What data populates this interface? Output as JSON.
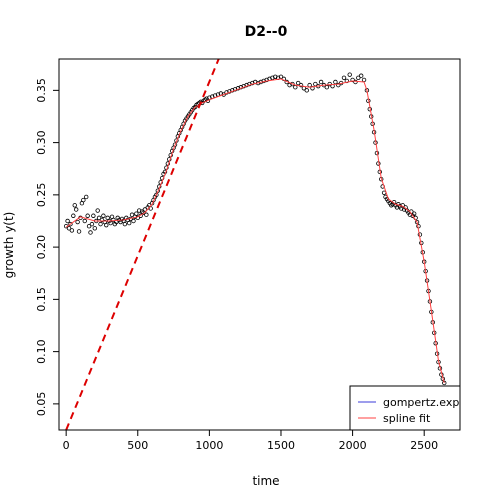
{
  "chart_data": {
    "type": "scatter",
    "title": "D2--0",
    "xlabel": "time",
    "ylabel": "growth y(t)",
    "xlim": [
      -50,
      2750
    ],
    "ylim": [
      0.025,
      0.38
    ],
    "x_ticks": [
      0,
      500,
      1000,
      1500,
      2000,
      2500
    ],
    "y_ticks": [
      0.05,
      0.1,
      0.15,
      0.2,
      0.25,
      0.3,
      0.35
    ],
    "grid": false,
    "legend_position": "bottom-right",
    "legend": [
      {
        "label": "gompertz.exp",
        "color": "#3b3bd9"
      },
      {
        "label": "spline fit",
        "color": "#ff4040"
      }
    ],
    "series": [
      {
        "name": "data",
        "kind": "points",
        "color": "#000000",
        "points": [
          [
            0,
            0.22
          ],
          [
            10,
            0.225
          ],
          [
            20,
            0.218
          ],
          [
            30,
            0.222
          ],
          [
            40,
            0.216
          ],
          [
            50,
            0.23
          ],
          [
            60,
            0.24
          ],
          [
            70,
            0.236
          ],
          [
            80,
            0.224
          ],
          [
            90,
            0.215
          ],
          [
            100,
            0.228
          ],
          [
            110,
            0.242
          ],
          [
            120,
            0.245
          ],
          [
            130,
            0.225
          ],
          [
            140,
            0.248
          ],
          [
            150,
            0.23
          ],
          [
            160,
            0.22
          ],
          [
            170,
            0.214
          ],
          [
            180,
            0.222
          ],
          [
            190,
            0.23
          ],
          [
            200,
            0.218
          ],
          [
            210,
            0.225
          ],
          [
            220,
            0.235
          ],
          [
            230,
            0.228
          ],
          [
            240,
            0.222
          ],
          [
            250,
            0.226
          ],
          [
            260,
            0.23
          ],
          [
            270,
            0.224
          ],
          [
            280,
            0.221
          ],
          [
            290,
            0.228
          ],
          [
            300,
            0.225
          ],
          [
            310,
            0.223
          ],
          [
            320,
            0.229
          ],
          [
            330,
            0.226
          ],
          [
            340,
            0.222
          ],
          [
            350,
            0.224
          ],
          [
            360,
            0.228
          ],
          [
            370,
            0.226
          ],
          [
            380,
            0.224
          ],
          [
            390,
            0.227
          ],
          [
            400,
            0.225
          ],
          [
            410,
            0.222
          ],
          [
            420,
            0.228
          ],
          [
            430,
            0.226
          ],
          [
            440,
            0.223
          ],
          [
            450,
            0.227
          ],
          [
            460,
            0.231
          ],
          [
            470,
            0.225
          ],
          [
            480,
            0.229
          ],
          [
            490,
            0.232
          ],
          [
            500,
            0.228
          ],
          [
            510,
            0.235
          ],
          [
            520,
            0.23
          ],
          [
            530,
            0.234
          ],
          [
            540,
            0.233
          ],
          [
            550,
            0.236
          ],
          [
            560,
            0.231
          ],
          [
            570,
            0.238
          ],
          [
            580,
            0.24
          ],
          [
            590,
            0.237
          ],
          [
            600,
            0.242
          ],
          [
            610,
            0.245
          ],
          [
            620,
            0.248
          ],
          [
            630,
            0.25
          ],
          [
            640,
            0.254
          ],
          [
            650,
            0.258
          ],
          [
            660,
            0.262
          ],
          [
            670,
            0.266
          ],
          [
            680,
            0.27
          ],
          [
            690,
            0.272
          ],
          [
            700,
            0.276
          ],
          [
            710,
            0.28
          ],
          [
            720,
            0.284
          ],
          [
            730,
            0.288
          ],
          [
            740,
            0.292
          ],
          [
            750,
            0.295
          ],
          [
            760,
            0.298
          ],
          [
            770,
            0.302
          ],
          [
            780,
            0.306
          ],
          [
            790,
            0.309
          ],
          [
            800,
            0.312
          ],
          [
            810,
            0.315
          ],
          [
            820,
            0.318
          ],
          [
            830,
            0.321
          ],
          [
            840,
            0.323
          ],
          [
            850,
            0.325
          ],
          [
            860,
            0.327
          ],
          [
            870,
            0.329
          ],
          [
            880,
            0.331
          ],
          [
            890,
            0.333
          ],
          [
            900,
            0.334
          ],
          [
            910,
            0.336
          ],
          [
            920,
            0.337
          ],
          [
            930,
            0.338
          ],
          [
            940,
            0.339
          ],
          [
            950,
            0.338
          ],
          [
            960,
            0.34
          ],
          [
            970,
            0.341
          ],
          [
            980,
            0.342
          ],
          [
            990,
            0.34
          ],
          [
            1000,
            0.343
          ],
          [
            1020,
            0.344
          ],
          [
            1040,
            0.345
          ],
          [
            1060,
            0.346
          ],
          [
            1080,
            0.347
          ],
          [
            1100,
            0.346
          ],
          [
            1120,
            0.348
          ],
          [
            1140,
            0.349
          ],
          [
            1160,
            0.35
          ],
          [
            1180,
            0.351
          ],
          [
            1200,
            0.352
          ],
          [
            1220,
            0.353
          ],
          [
            1240,
            0.354
          ],
          [
            1260,
            0.355
          ],
          [
            1280,
            0.356
          ],
          [
            1300,
            0.357
          ],
          [
            1320,
            0.358
          ],
          [
            1340,
            0.357
          ],
          [
            1360,
            0.358
          ],
          [
            1380,
            0.359
          ],
          [
            1400,
            0.36
          ],
          [
            1420,
            0.361
          ],
          [
            1440,
            0.362
          ],
          [
            1460,
            0.363
          ],
          [
            1480,
            0.362
          ],
          [
            1500,
            0.363
          ],
          [
            1520,
            0.361
          ],
          [
            1540,
            0.358
          ],
          [
            1560,
            0.355
          ],
          [
            1580,
            0.356
          ],
          [
            1600,
            0.353
          ],
          [
            1620,
            0.357
          ],
          [
            1640,
            0.355
          ],
          [
            1660,
            0.352
          ],
          [
            1680,
            0.35
          ],
          [
            1700,
            0.355
          ],
          [
            1720,
            0.352
          ],
          [
            1740,
            0.356
          ],
          [
            1760,
            0.354
          ],
          [
            1780,
            0.358
          ],
          [
            1800,
            0.355
          ],
          [
            1820,
            0.353
          ],
          [
            1840,
            0.356
          ],
          [
            1860,
            0.354
          ],
          [
            1880,
            0.358
          ],
          [
            1900,
            0.355
          ],
          [
            1920,
            0.357
          ],
          [
            1940,
            0.362
          ],
          [
            1960,
            0.359
          ],
          [
            1980,
            0.365
          ],
          [
            2000,
            0.36
          ],
          [
            2020,
            0.358
          ],
          [
            2040,
            0.362
          ],
          [
            2060,
            0.364
          ],
          [
            2080,
            0.36
          ],
          [
            2100,
            0.35
          ],
          [
            2110,
            0.34
          ],
          [
            2120,
            0.332
          ],
          [
            2130,
            0.325
          ],
          [
            2140,
            0.318
          ],
          [
            2150,
            0.31
          ],
          [
            2160,
            0.3
          ],
          [
            2170,
            0.29
          ],
          [
            2180,
            0.28
          ],
          [
            2190,
            0.272
          ],
          [
            2200,
            0.265
          ],
          [
            2210,
            0.258
          ],
          [
            2220,
            0.252
          ],
          [
            2230,
            0.248
          ],
          [
            2240,
            0.246
          ],
          [
            2250,
            0.244
          ],
          [
            2260,
            0.242
          ],
          [
            2270,
            0.24
          ],
          [
            2280,
            0.241
          ],
          [
            2290,
            0.243
          ],
          [
            2300,
            0.24
          ],
          [
            2310,
            0.238
          ],
          [
            2320,
            0.241
          ],
          [
            2330,
            0.239
          ],
          [
            2340,
            0.237
          ],
          [
            2350,
            0.24
          ],
          [
            2360,
            0.236
          ],
          [
            2370,
            0.238
          ],
          [
            2380,
            0.235
          ],
          [
            2390,
            0.233
          ],
          [
            2400,
            0.231
          ],
          [
            2410,
            0.234
          ],
          [
            2420,
            0.23
          ],
          [
            2430,
            0.232
          ],
          [
            2440,
            0.228
          ],
          [
            2450,
            0.224
          ],
          [
            2460,
            0.22
          ],
          [
            2470,
            0.212
          ],
          [
            2480,
            0.204
          ],
          [
            2490,
            0.195
          ],
          [
            2500,
            0.186
          ],
          [
            2510,
            0.177
          ],
          [
            2520,
            0.168
          ],
          [
            2530,
            0.158
          ],
          [
            2540,
            0.148
          ],
          [
            2550,
            0.138
          ],
          [
            2560,
            0.128
          ],
          [
            2570,
            0.118
          ],
          [
            2580,
            0.108
          ],
          [
            2590,
            0.098
          ],
          [
            2600,
            0.09
          ],
          [
            2610,
            0.084
          ],
          [
            2620,
            0.078
          ],
          [
            2630,
            0.074
          ],
          [
            2640,
            0.07
          ]
        ]
      },
      {
        "name": "spline fit",
        "kind": "line",
        "color": "#ff4040",
        "points": [
          [
            0,
            0.219
          ],
          [
            100,
            0.229
          ],
          [
            200,
            0.225
          ],
          [
            300,
            0.225
          ],
          [
            400,
            0.226
          ],
          [
            500,
            0.229
          ],
          [
            550,
            0.233
          ],
          [
            600,
            0.241
          ],
          [
            650,
            0.256
          ],
          [
            700,
            0.273
          ],
          [
            750,
            0.294
          ],
          [
            800,
            0.311
          ],
          [
            850,
            0.325
          ],
          [
            900,
            0.334
          ],
          [
            950,
            0.338
          ],
          [
            1000,
            0.341
          ],
          [
            1100,
            0.346
          ],
          [
            1200,
            0.351
          ],
          [
            1300,
            0.356
          ],
          [
            1400,
            0.359
          ],
          [
            1500,
            0.361
          ],
          [
            1600,
            0.355
          ],
          [
            1700,
            0.353
          ],
          [
            1800,
            0.355
          ],
          [
            1900,
            0.356
          ],
          [
            2000,
            0.359
          ],
          [
            2080,
            0.358
          ],
          [
            2100,
            0.35
          ],
          [
            2150,
            0.312
          ],
          [
            2200,
            0.266
          ],
          [
            2250,
            0.246
          ],
          [
            2300,
            0.241
          ],
          [
            2350,
            0.239
          ],
          [
            2400,
            0.234
          ],
          [
            2450,
            0.224
          ],
          [
            2500,
            0.186
          ],
          [
            2550,
            0.139
          ],
          [
            2600,
            0.091
          ],
          [
            2640,
            0.07
          ]
        ]
      },
      {
        "name": "tangent",
        "kind": "dashed-line",
        "color": "#dd0000",
        "points": [
          [
            0,
            0.025
          ],
          [
            1065,
            0.38
          ]
        ]
      }
    ]
  }
}
